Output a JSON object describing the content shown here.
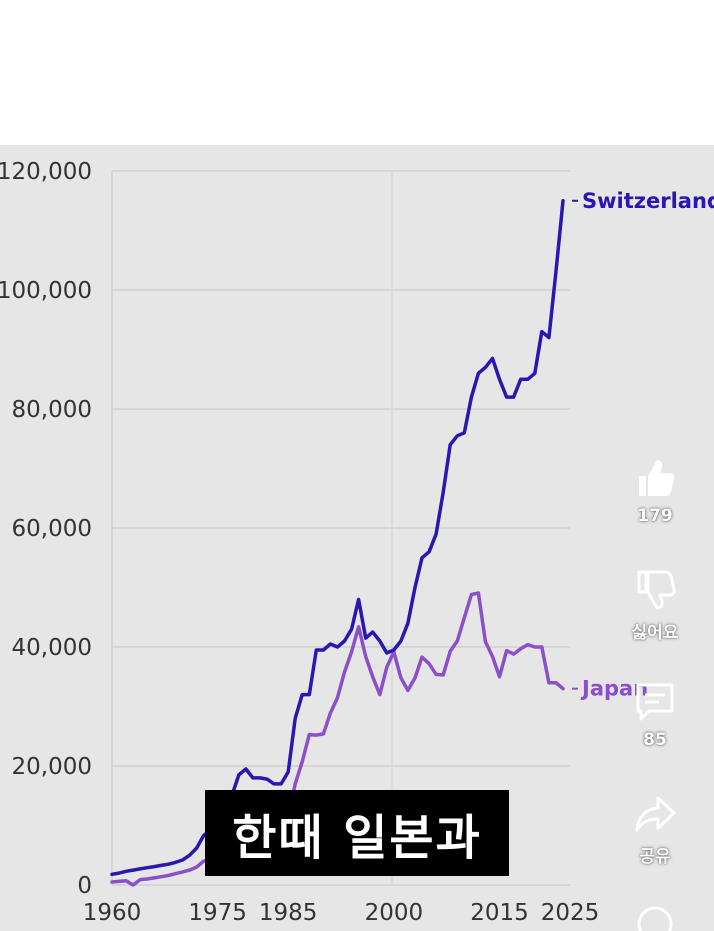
{
  "chart_data": {
    "type": "line",
    "x_ticks": [
      "1960",
      "1975",
      "1985",
      "2000",
      "2015",
      "2025"
    ],
    "y_ticks": [
      "0",
      "20,000",
      "40,000",
      "60,000",
      "80,000",
      "100,000",
      "120,000"
    ],
    "xlim": [
      1960,
      2025
    ],
    "ylim": [
      0,
      120000
    ],
    "grid": true,
    "series": [
      {
        "name": "Switzerland",
        "color": "#2a16b0",
        "x": [
          1960,
          1961,
          1962,
          1963,
          1964,
          1965,
          1966,
          1967,
          1968,
          1969,
          1970,
          1971,
          1972,
          1973,
          1974,
          1975,
          1976,
          1977,
          1978,
          1979,
          1980,
          1981,
          1982,
          1983,
          1984,
          1985,
          1986,
          1987,
          1988,
          1989,
          1990,
          1991,
          1992,
          1993,
          1994,
          1995,
          1996,
          1997,
          1998,
          1999,
          2000,
          2001,
          2002,
          2003,
          2004,
          2005,
          2006,
          2007,
          2008,
          2009,
          2010,
          2011,
          2012,
          2013,
          2014,
          2015,
          2016,
          2017,
          2018,
          2019,
          2020,
          2021,
          2022,
          2023,
          2024
        ],
        "values": [
          1800,
          2000,
          2300,
          2500,
          2700,
          2900,
          3100,
          3300,
          3500,
          3800,
          4200,
          5000,
          6200,
          8300,
          9300,
          11000,
          12000,
          15000,
          18500,
          19500,
          18000,
          18000,
          17800,
          17000,
          17000,
          19000,
          28000,
          32000,
          32000,
          39500,
          39500,
          40500,
          40000,
          41000,
          43000,
          48000,
          41500,
          42500,
          41000,
          39000,
          39500,
          41000,
          44000,
          50000,
          55000,
          56000,
          59000,
          66000,
          74000,
          75500,
          76000,
          82000,
          86000,
          87000,
          88500,
          85000,
          82000,
          82000,
          85000,
          85000,
          86000,
          93000,
          92000,
          103000,
          115000
        ]
      },
      {
        "name": "Japan",
        "color": "#8a4fc9",
        "x": [
          1960,
          1961,
          1962,
          1963,
          1964,
          1965,
          1966,
          1967,
          1968,
          1969,
          1970,
          1971,
          1972,
          1973,
          1974,
          1975,
          1976,
          1977,
          1978,
          1979,
          1980,
          1981,
          1982,
          1983,
          1984,
          1985,
          1986,
          1987,
          1988,
          1989,
          1990,
          1991,
          1992,
          1993,
          1994,
          1995,
          1996,
          1997,
          1998,
          1999,
          2000,
          2001,
          2002,
          2003,
          2004,
          2005,
          2006,
          2007,
          2008,
          2009,
          2010,
          2011,
          2012,
          2013,
          2014,
          2015,
          2016,
          2017,
          2018,
          2019,
          2020,
          2021,
          2022,
          2023,
          2024
        ],
        "values": [
          500,
          600,
          700,
          0,
          900,
          1000,
          1200,
          1400,
          1600,
          1900,
          2200,
          2500,
          3000,
          4000,
          4200,
          4600,
          5200,
          6400,
          8500,
          9000,
          9400,
          10100,
          9600,
          10200,
          10800,
          11500,
          17000,
          20700,
          25300,
          25200,
          25400,
          28900,
          31500,
          35800,
          39200,
          43400,
          38400,
          35000,
          32000,
          36600,
          39200,
          34800,
          32700,
          34800,
          38300,
          37200,
          35400,
          35300,
          39300,
          41000,
          44900,
          48800,
          49100,
          40900,
          38400,
          35000,
          39400,
          38800,
          39700,
          40400,
          40000,
          40000,
          34000,
          34000,
          33000
        ]
      }
    ]
  },
  "overlay": {
    "subtitle": "한때 일본과",
    "actions": [
      {
        "icon": "thumbs-up-icon",
        "label": "179"
      },
      {
        "icon": "thumbs-down-icon",
        "label": "싫어요"
      },
      {
        "icon": "comment-icon",
        "label": "85"
      },
      {
        "icon": "share-icon",
        "label": "공유"
      }
    ]
  }
}
